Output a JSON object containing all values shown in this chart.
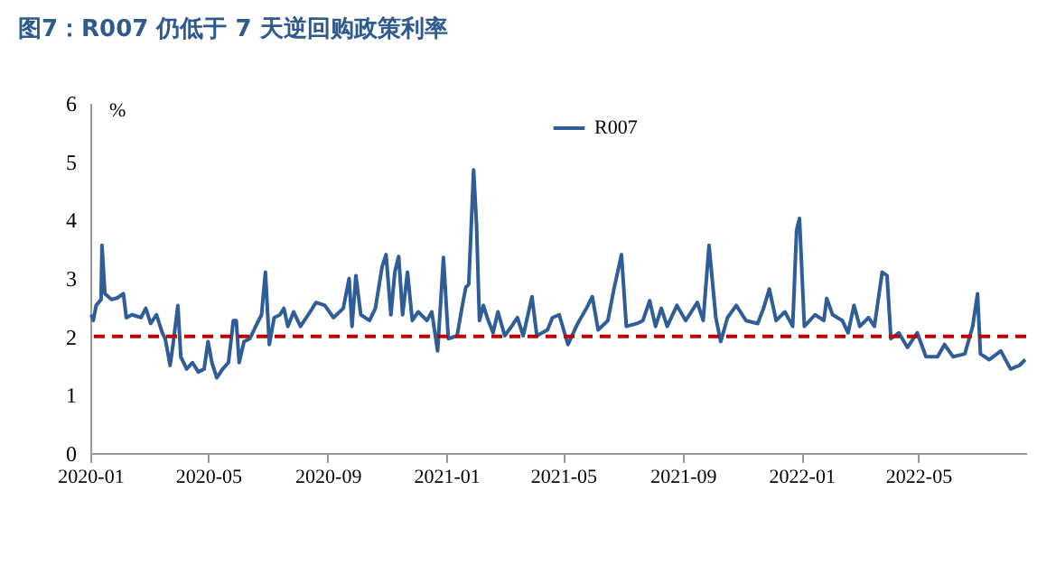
{
  "chart_data": {
    "type": "line",
    "title": "图7：R007 仍低于 7 天逆回购政策利率",
    "ylabel": "%",
    "x": [
      "2020-01-02",
      "2020-01-04",
      "2020-01-07",
      "2020-01-12",
      "2020-01-13",
      "2020-01-16",
      "2020-01-23",
      "2020-01-29",
      "2020-02-04",
      "2020-02-07",
      "2020-02-13",
      "2020-02-22",
      "2020-02-27",
      "2020-03-03",
      "2020-03-09",
      "2020-03-15",
      "2020-03-18",
      "2020-03-23",
      "2020-03-26",
      "2020-03-31",
      "2020-04-03",
      "2020-04-09",
      "2020-04-15",
      "2020-04-21",
      "2020-04-27",
      "2020-05-01",
      "2020-05-05",
      "2020-05-10",
      "2020-05-16",
      "2020-05-22",
      "2020-05-27",
      "2020-05-30",
      "2020-06-02",
      "2020-06-07",
      "2020-06-13",
      "2020-06-19",
      "2020-06-25",
      "2020-06-29",
      "2020-07-03",
      "2020-07-08",
      "2020-07-14",
      "2020-07-18",
      "2020-07-22",
      "2020-07-28",
      "2020-08-04",
      "2020-08-14",
      "2020-08-20",
      "2020-08-29",
      "2020-09-07",
      "2020-09-17",
      "2020-09-23",
      "2020-09-26",
      "2020-09-30",
      "2020-10-05",
      "2020-10-14",
      "2020-10-20",
      "2020-10-27",
      "2020-10-31",
      "2020-11-05",
      "2020-11-09",
      "2020-11-13",
      "2020-11-17",
      "2020-11-22",
      "2020-11-27",
      "2020-12-03",
      "2020-12-12",
      "2020-12-17",
      "2020-12-23",
      "2020-12-29",
      "2021-01-03",
      "2021-01-12",
      "2021-01-18",
      "2021-01-21",
      "2021-01-24",
      "2021-01-29",
      "2021-02-01",
      "2021-02-04",
      "2021-02-08",
      "2021-02-12",
      "2021-02-18",
      "2021-02-23",
      "2021-03-02",
      "2021-03-09",
      "2021-03-15",
      "2021-03-21",
      "2021-03-30",
      "2021-04-04",
      "2021-04-15",
      "2021-04-20",
      "2021-04-27",
      "2021-05-06",
      "2021-05-16",
      "2021-05-25",
      "2021-05-31",
      "2021-06-06",
      "2021-06-16",
      "2021-06-22",
      "2021-06-30",
      "2021-07-05",
      "2021-07-16",
      "2021-07-22",
      "2021-07-29",
      "2021-08-04",
      "2021-08-10",
      "2021-08-16",
      "2021-08-26",
      "2021-09-04",
      "2021-09-16",
      "2021-09-22",
      "2021-09-28",
      "2021-10-05",
      "2021-10-10",
      "2021-10-17",
      "2021-10-26",
      "2021-11-05",
      "2021-11-17",
      "2021-11-23",
      "2021-11-29",
      "2021-12-06",
      "2021-12-15",
      "2021-12-23",
      "2021-12-27",
      "2021-12-30",
      "2022-01-04",
      "2022-01-15",
      "2022-01-24",
      "2022-01-27",
      "2022-02-02",
      "2022-02-12",
      "2022-02-18",
      "2022-02-24",
      "2022-03-02",
      "2022-03-11",
      "2022-03-17",
      "2022-03-25",
      "2022-03-30",
      "2022-04-03",
      "2022-04-11",
      "2022-04-20",
      "2022-04-30",
      "2022-05-09",
      "2022-05-21",
      "2022-05-28",
      "2022-06-06",
      "2022-06-18",
      "2022-06-26",
      "2022-07-01",
      "2022-07-04",
      "2022-07-13",
      "2022-07-25",
      "2022-08-04",
      "2022-08-13",
      "2022-08-19"
    ],
    "series": [
      {
        "name": "R007",
        "color": "#2f5d97",
        "values": [
          2.37,
          2.27,
          2.53,
          2.63,
          3.56,
          2.73,
          2.63,
          2.66,
          2.73,
          2.32,
          2.37,
          2.32,
          2.48,
          2.22,
          2.37,
          2.06,
          1.96,
          1.5,
          1.86,
          2.53,
          1.65,
          1.44,
          1.55,
          1.39,
          1.44,
          1.91,
          1.55,
          1.29,
          1.44,
          1.55,
          2.27,
          2.27,
          1.55,
          1.91,
          1.96,
          2.17,
          2.37,
          3.1,
          1.86,
          2.32,
          2.37,
          2.48,
          2.17,
          2.42,
          2.17,
          2.42,
          2.58,
          2.53,
          2.32,
          2.48,
          2.99,
          2.17,
          3.04,
          2.37,
          2.27,
          2.48,
          3.2,
          3.4,
          2.37,
          3.1,
          3.37,
          2.37,
          3.1,
          2.27,
          2.42,
          2.27,
          2.42,
          1.75,
          3.35,
          1.96,
          2.01,
          2.58,
          2.84,
          2.89,
          4.85,
          3.92,
          2.27,
          2.53,
          2.32,
          2.06,
          2.42,
          2.01,
          2.17,
          2.32,
          2.01,
          2.68,
          2.01,
          2.11,
          2.32,
          2.37,
          1.86,
          2.22,
          2.48,
          2.68,
          2.11,
          2.27,
          2.79,
          3.4,
          2.17,
          2.22,
          2.27,
          2.61,
          2.17,
          2.48,
          2.17,
          2.53,
          2.27,
          2.58,
          2.27,
          3.56,
          2.32,
          1.91,
          2.32,
          2.53,
          2.27,
          2.22,
          2.48,
          2.81,
          2.27,
          2.42,
          2.17,
          3.82,
          4.02,
          2.17,
          2.37,
          2.27,
          2.65,
          2.37,
          2.27,
          2.06,
          2.53,
          2.17,
          2.32,
          2.17,
          3.1,
          3.04,
          1.96,
          2.06,
          1.81,
          2.06,
          1.65,
          1.65,
          1.86,
          1.65,
          1.7,
          2.17,
          2.73,
          1.7,
          1.6,
          1.75,
          1.44,
          1.5,
          1.6
        ]
      }
    ],
    "xlim": [
      "2020-01-01",
      "2022-08-20"
    ],
    "xticks": [
      "2020-01",
      "2020-05",
      "2020-09",
      "2021-01",
      "2021-05",
      "2021-09",
      "2022-01",
      "2022-05"
    ],
    "ylim": [
      0,
      6
    ],
    "yticks": [
      0,
      1,
      2,
      3,
      4,
      5,
      6
    ],
    "ref_lines": [
      {
        "axis": "y",
        "value": 2,
        "color": "#c00000",
        "line_style": "dashed"
      }
    ],
    "legend": "top",
    "grid": false,
    "marker": "none",
    "line_style": "solid"
  }
}
